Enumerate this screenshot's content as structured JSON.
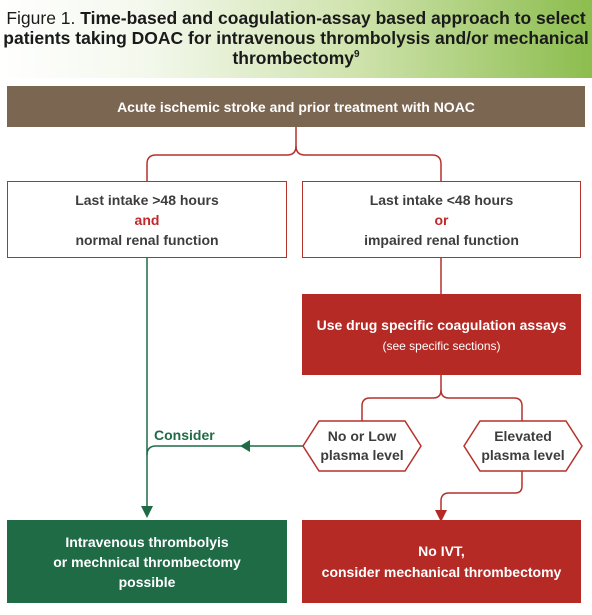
{
  "header": {
    "figure_label": "Figure 1.",
    "title_part1": "Time-based and coagulation-assay based approach to select",
    "title_part2": "patients taking DOAC for intravenous thrombolysis and/or mechanical",
    "title_part3": "thrombectomy",
    "superscript": "9"
  },
  "top_box": {
    "label": "Acute ischemic stroke and prior treatment with NOAC"
  },
  "left_box": {
    "line1": "Last intake >48 hours",
    "connector": "and",
    "line2": "normal renal function"
  },
  "right_box": {
    "line1": "Last intake <48 hours",
    "connector": "or",
    "line2": "impaired renal function"
  },
  "assay_box": {
    "label": "Use drug specific coagulation assays",
    "sublabel": "(see specific sections)"
  },
  "low_level": {
    "line1": "No or Low",
    "line2": "plasma level"
  },
  "high_level": {
    "line1": "Elevated",
    "line2": "plasma level"
  },
  "consider_label": "Consider",
  "ivt_box": {
    "line1": "Intravenous thrombolyis",
    "line2": "or mechnical thrombectomy",
    "line3": "possible"
  },
  "no_ivt_box": {
    "line1": "No IVT,",
    "line2": "consider mechanical thrombectomy"
  },
  "colors": {
    "brown": "#7b6652",
    "red": "#b52a25",
    "green": "#1f6b46",
    "header_green": "#8cbd4e"
  }
}
